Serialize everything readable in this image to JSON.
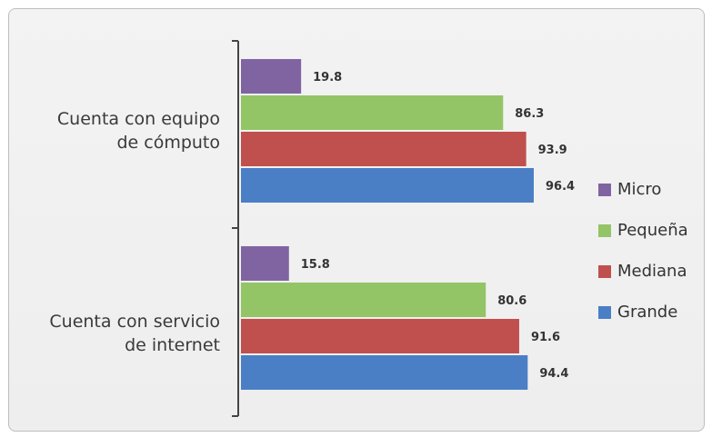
{
  "chart_data": {
    "type": "bar",
    "orientation": "horizontal",
    "categories": [
      "Cuenta con equipo\nde cómputo",
      "Cuenta con servicio\nde internet"
    ],
    "series": [
      {
        "name": "Micro",
        "color": "#8064a2",
        "values": [
          19.8,
          15.8
        ]
      },
      {
        "name": "Pequeña",
        "color": "#93c567",
        "values": [
          86.3,
          80.6
        ]
      },
      {
        "name": "Mediana",
        "color": "#c0504d",
        "values": [
          93.9,
          91.6
        ]
      },
      {
        "name": "Grande",
        "color": "#4a7fc5",
        "values": [
          96.4,
          94.4
        ]
      }
    ],
    "xlim": [
      0,
      100
    ],
    "grid": false,
    "legend_position": "right",
    "data_labels": true
  }
}
